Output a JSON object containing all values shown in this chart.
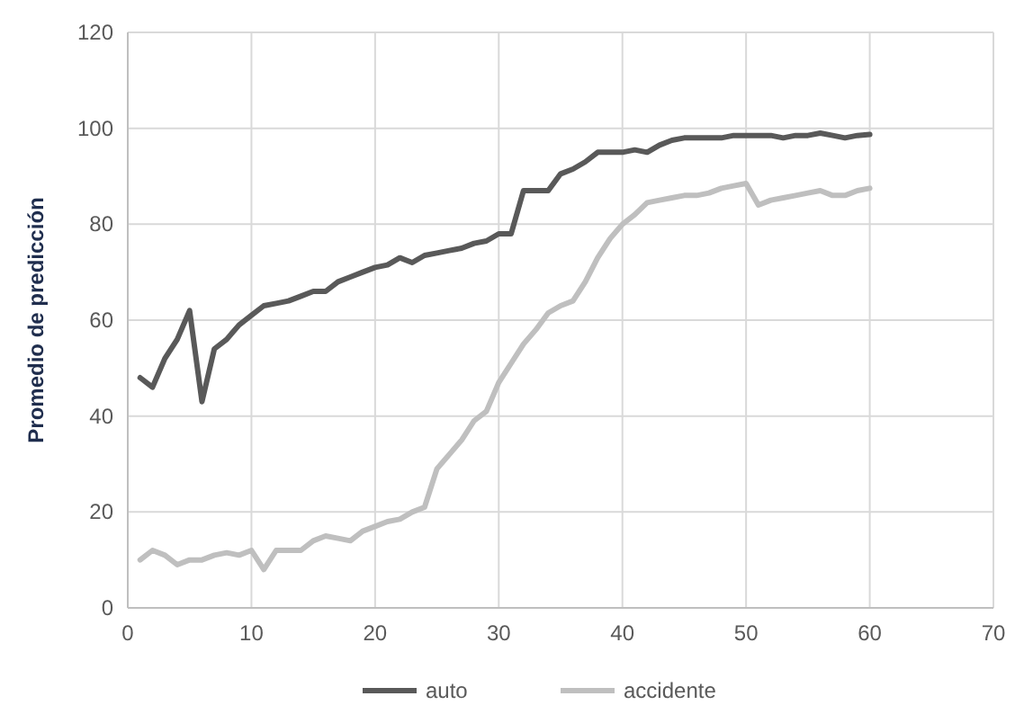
{
  "chart_data": {
    "type": "line",
    "ylabel": "Promedio de predicción",
    "x": [
      1,
      2,
      3,
      4,
      5,
      6,
      7,
      8,
      9,
      10,
      11,
      12,
      13,
      14,
      15,
      16,
      17,
      18,
      19,
      20,
      21,
      22,
      23,
      24,
      25,
      26,
      27,
      28,
      29,
      30,
      31,
      32,
      33,
      34,
      35,
      36,
      37,
      38,
      39,
      40,
      41,
      42,
      43,
      44,
      45,
      46,
      47,
      48,
      49,
      50,
      51,
      52,
      53,
      54,
      55,
      56,
      57,
      58,
      59,
      60
    ],
    "series": [
      {
        "name": "auto",
        "color": "#595959",
        "values": [
          48,
          46,
          52,
          56,
          62,
          43,
          54,
          56,
          59,
          61,
          63,
          63.5,
          64,
          65,
          66,
          66,
          68,
          69,
          70,
          71,
          71.5,
          73,
          72,
          73.5,
          74,
          74.5,
          75,
          76,
          76.5,
          78,
          78,
          87,
          87,
          87,
          90.5,
          91.5,
          93,
          95,
          95,
          95,
          95.5,
          95,
          96.5,
          97.5,
          98,
          98,
          98,
          98,
          98.5,
          98.5,
          98.5,
          98.5,
          98,
          98.5,
          98.5,
          99,
          98.5,
          98,
          98.5,
          98.7
        ]
      },
      {
        "name": "accidente",
        "color": "#bfbfbf",
        "values": [
          10,
          12,
          11,
          9,
          10,
          10,
          11,
          11.5,
          11,
          12,
          8,
          12,
          12,
          12,
          14,
          15,
          14.5,
          14,
          16,
          17,
          18,
          18.5,
          20,
          21,
          29,
          32,
          35,
          39,
          41,
          47,
          51,
          55,
          58,
          61.5,
          63,
          64,
          68,
          73,
          77,
          80,
          82,
          84.5,
          85,
          85.5,
          86,
          86,
          86.5,
          87.5,
          88,
          88.5,
          84,
          85,
          85.5,
          86,
          86.5,
          87,
          86,
          86,
          87,
          87.5
        ]
      }
    ],
    "xlim": [
      0,
      70
    ],
    "xticks": [
      0,
      10,
      20,
      30,
      40,
      50,
      60,
      70
    ],
    "ylim": [
      0,
      120
    ],
    "yticks": [
      0,
      20,
      40,
      60,
      80,
      100,
      120
    ],
    "grid": true,
    "legend": "bottom"
  }
}
